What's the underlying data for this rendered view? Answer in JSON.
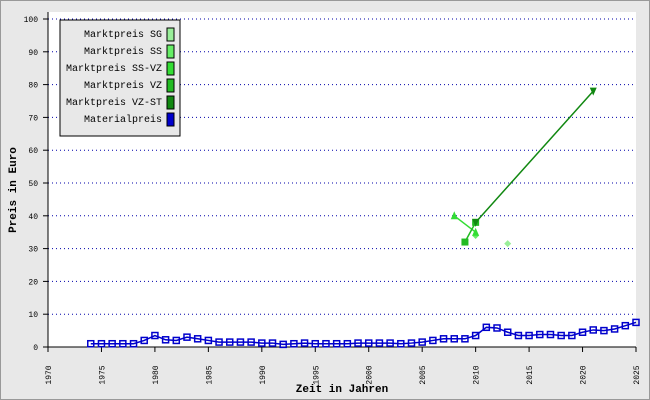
{
  "chart_data": {
    "type": "line",
    "x_label": "Zeit in Jahren",
    "y_label": "Preis in Euro",
    "xlim": [
      1970,
      2025
    ],
    "xticks": [
      1970,
      1975,
      1980,
      1985,
      1990,
      1995,
      2000,
      2005,
      2010,
      2015,
      2020,
      2025
    ],
    "ylim": [
      0,
      100
    ],
    "yticks": [
      0,
      10,
      20,
      30,
      40,
      50,
      60,
      70,
      80,
      90,
      100
    ],
    "grid": true,
    "legend": "upper left",
    "series": [
      {
        "name": "Marktpreis SG",
        "color": "#99ee99",
        "marker": "diamond",
        "x": [
          2013
        ],
        "values": [
          31.5
        ]
      },
      {
        "name": "Marktpreis SS",
        "color": "#66ee66",
        "marker": "diamond",
        "x": [
          2010
        ],
        "values": [
          34
        ]
      },
      {
        "name": "Marktpreis SS-VZ",
        "color": "#33dd33",
        "marker": "triangle",
        "x": [
          2008,
          2010
        ],
        "values": [
          40,
          35
        ]
      },
      {
        "name": "Marktpreis VZ",
        "color": "#22bb22",
        "marker": "square",
        "x": [
          2009,
          2010
        ],
        "values": [
          32,
          38
        ]
      },
      {
        "name": "Marktpreis VZ-ST",
        "color": "#118811",
        "marker": "triangle-down",
        "x": [
          2010,
          2021
        ],
        "values": [
          38,
          78
        ]
      },
      {
        "name": "Materialpreis",
        "color": "#0000cc",
        "marker": "open-square",
        "x": [
          1974,
          1975,
          1976,
          1977,
          1978,
          1979,
          1980,
          1981,
          1982,
          1983,
          1984,
          1985,
          1986,
          1987,
          1988,
          1989,
          1990,
          1991,
          1992,
          1993,
          1994,
          1995,
          1996,
          1997,
          1998,
          1999,
          2000,
          2001,
          2002,
          2003,
          2004,
          2005,
          2006,
          2007,
          2008,
          2009,
          2010,
          2011,
          2012,
          2013,
          2014,
          2015,
          2016,
          2017,
          2018,
          2019,
          2020,
          2021,
          2022,
          2023,
          2024,
          2025
        ],
        "values": [
          1,
          1,
          1,
          1,
          1,
          2,
          3.5,
          2.2,
          2,
          3,
          2.5,
          2,
          1.5,
          1.5,
          1.5,
          1.5,
          1.2,
          1.2,
          0.8,
          1,
          1.2,
          1,
          1,
          1,
          1,
          1.2,
          1.2,
          1.2,
          1.2,
          1,
          1.2,
          1.5,
          2,
          2.5,
          2.5,
          2.5,
          3.5,
          6,
          5.8,
          4.5,
          3.5,
          3.5,
          3.8,
          3.8,
          3.5,
          3.5,
          4.5,
          5.2,
          5,
          5.5,
          6.5,
          7.5
        ]
      }
    ]
  }
}
